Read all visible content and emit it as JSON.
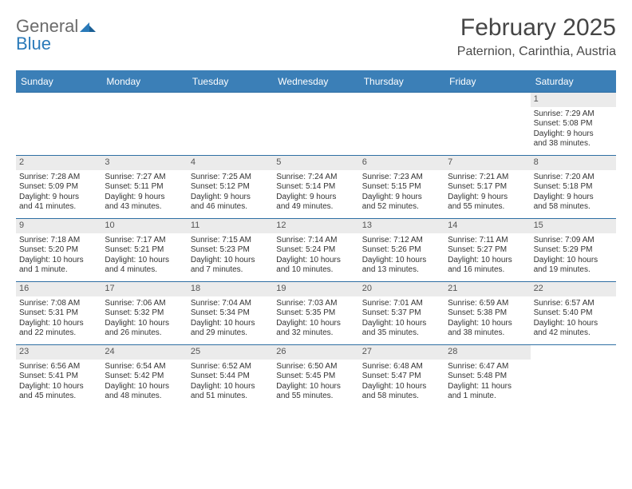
{
  "logo": {
    "word1": "General",
    "word2": "Blue"
  },
  "title": "February 2025",
  "location": "Paternion, Carinthia, Austria",
  "colors": {
    "header_bar": "#3b7fb7",
    "row_divider": "#2f6fa3",
    "daynum_bg": "#ebebeb",
    "text": "#333333",
    "logo_gray": "#6b6b6b",
    "logo_blue": "#2a7ab9"
  },
  "weekdays": [
    "Sunday",
    "Monday",
    "Tuesday",
    "Wednesday",
    "Thursday",
    "Friday",
    "Saturday"
  ],
  "weeks": [
    [
      {
        "empty": true
      },
      {
        "empty": true
      },
      {
        "empty": true
      },
      {
        "empty": true
      },
      {
        "empty": true
      },
      {
        "empty": true
      },
      {
        "n": "1",
        "sunrise": "Sunrise: 7:29 AM",
        "sunset": "Sunset: 5:08 PM",
        "dl1": "Daylight: 9 hours",
        "dl2": "and 38 minutes."
      }
    ],
    [
      {
        "n": "2",
        "sunrise": "Sunrise: 7:28 AM",
        "sunset": "Sunset: 5:09 PM",
        "dl1": "Daylight: 9 hours",
        "dl2": "and 41 minutes."
      },
      {
        "n": "3",
        "sunrise": "Sunrise: 7:27 AM",
        "sunset": "Sunset: 5:11 PM",
        "dl1": "Daylight: 9 hours",
        "dl2": "and 43 minutes."
      },
      {
        "n": "4",
        "sunrise": "Sunrise: 7:25 AM",
        "sunset": "Sunset: 5:12 PM",
        "dl1": "Daylight: 9 hours",
        "dl2": "and 46 minutes."
      },
      {
        "n": "5",
        "sunrise": "Sunrise: 7:24 AM",
        "sunset": "Sunset: 5:14 PM",
        "dl1": "Daylight: 9 hours",
        "dl2": "and 49 minutes."
      },
      {
        "n": "6",
        "sunrise": "Sunrise: 7:23 AM",
        "sunset": "Sunset: 5:15 PM",
        "dl1": "Daylight: 9 hours",
        "dl2": "and 52 minutes."
      },
      {
        "n": "7",
        "sunrise": "Sunrise: 7:21 AM",
        "sunset": "Sunset: 5:17 PM",
        "dl1": "Daylight: 9 hours",
        "dl2": "and 55 minutes."
      },
      {
        "n": "8",
        "sunrise": "Sunrise: 7:20 AM",
        "sunset": "Sunset: 5:18 PM",
        "dl1": "Daylight: 9 hours",
        "dl2": "and 58 minutes."
      }
    ],
    [
      {
        "n": "9",
        "sunrise": "Sunrise: 7:18 AM",
        "sunset": "Sunset: 5:20 PM",
        "dl1": "Daylight: 10 hours",
        "dl2": "and 1 minute."
      },
      {
        "n": "10",
        "sunrise": "Sunrise: 7:17 AM",
        "sunset": "Sunset: 5:21 PM",
        "dl1": "Daylight: 10 hours",
        "dl2": "and 4 minutes."
      },
      {
        "n": "11",
        "sunrise": "Sunrise: 7:15 AM",
        "sunset": "Sunset: 5:23 PM",
        "dl1": "Daylight: 10 hours",
        "dl2": "and 7 minutes."
      },
      {
        "n": "12",
        "sunrise": "Sunrise: 7:14 AM",
        "sunset": "Sunset: 5:24 PM",
        "dl1": "Daylight: 10 hours",
        "dl2": "and 10 minutes."
      },
      {
        "n": "13",
        "sunrise": "Sunrise: 7:12 AM",
        "sunset": "Sunset: 5:26 PM",
        "dl1": "Daylight: 10 hours",
        "dl2": "and 13 minutes."
      },
      {
        "n": "14",
        "sunrise": "Sunrise: 7:11 AM",
        "sunset": "Sunset: 5:27 PM",
        "dl1": "Daylight: 10 hours",
        "dl2": "and 16 minutes."
      },
      {
        "n": "15",
        "sunrise": "Sunrise: 7:09 AM",
        "sunset": "Sunset: 5:29 PM",
        "dl1": "Daylight: 10 hours",
        "dl2": "and 19 minutes."
      }
    ],
    [
      {
        "n": "16",
        "sunrise": "Sunrise: 7:08 AM",
        "sunset": "Sunset: 5:31 PM",
        "dl1": "Daylight: 10 hours",
        "dl2": "and 22 minutes."
      },
      {
        "n": "17",
        "sunrise": "Sunrise: 7:06 AM",
        "sunset": "Sunset: 5:32 PM",
        "dl1": "Daylight: 10 hours",
        "dl2": "and 26 minutes."
      },
      {
        "n": "18",
        "sunrise": "Sunrise: 7:04 AM",
        "sunset": "Sunset: 5:34 PM",
        "dl1": "Daylight: 10 hours",
        "dl2": "and 29 minutes."
      },
      {
        "n": "19",
        "sunrise": "Sunrise: 7:03 AM",
        "sunset": "Sunset: 5:35 PM",
        "dl1": "Daylight: 10 hours",
        "dl2": "and 32 minutes."
      },
      {
        "n": "20",
        "sunrise": "Sunrise: 7:01 AM",
        "sunset": "Sunset: 5:37 PM",
        "dl1": "Daylight: 10 hours",
        "dl2": "and 35 minutes."
      },
      {
        "n": "21",
        "sunrise": "Sunrise: 6:59 AM",
        "sunset": "Sunset: 5:38 PM",
        "dl1": "Daylight: 10 hours",
        "dl2": "and 38 minutes."
      },
      {
        "n": "22",
        "sunrise": "Sunrise: 6:57 AM",
        "sunset": "Sunset: 5:40 PM",
        "dl1": "Daylight: 10 hours",
        "dl2": "and 42 minutes."
      }
    ],
    [
      {
        "n": "23",
        "sunrise": "Sunrise: 6:56 AM",
        "sunset": "Sunset: 5:41 PM",
        "dl1": "Daylight: 10 hours",
        "dl2": "and 45 minutes."
      },
      {
        "n": "24",
        "sunrise": "Sunrise: 6:54 AM",
        "sunset": "Sunset: 5:42 PM",
        "dl1": "Daylight: 10 hours",
        "dl2": "and 48 minutes."
      },
      {
        "n": "25",
        "sunrise": "Sunrise: 6:52 AM",
        "sunset": "Sunset: 5:44 PM",
        "dl1": "Daylight: 10 hours",
        "dl2": "and 51 minutes."
      },
      {
        "n": "26",
        "sunrise": "Sunrise: 6:50 AM",
        "sunset": "Sunset: 5:45 PM",
        "dl1": "Daylight: 10 hours",
        "dl2": "and 55 minutes."
      },
      {
        "n": "27",
        "sunrise": "Sunrise: 6:48 AM",
        "sunset": "Sunset: 5:47 PM",
        "dl1": "Daylight: 10 hours",
        "dl2": "and 58 minutes."
      },
      {
        "n": "28",
        "sunrise": "Sunrise: 6:47 AM",
        "sunset": "Sunset: 5:48 PM",
        "dl1": "Daylight: 11 hours",
        "dl2": "and 1 minute."
      },
      {
        "empty": true
      }
    ]
  ]
}
